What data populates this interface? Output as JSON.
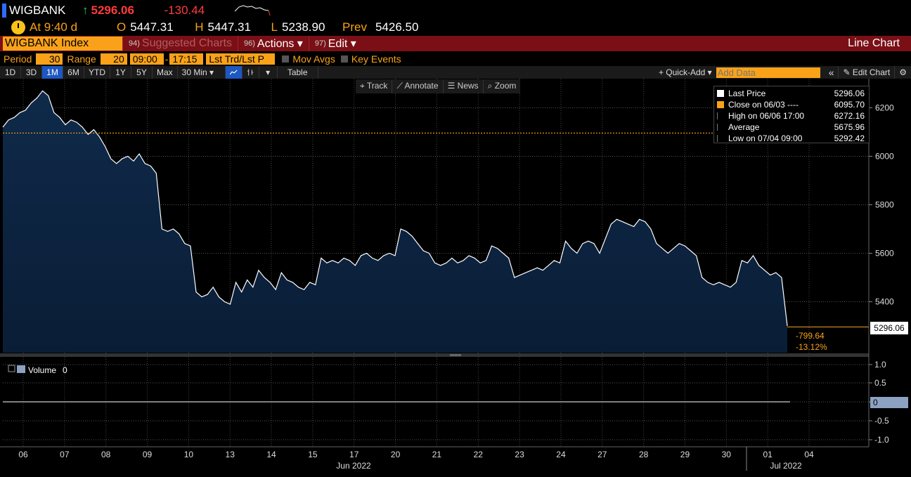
{
  "quote": {
    "ticker": "WIGBANK",
    "last": "5296.06",
    "change": "-130.44",
    "time_label": "At 9:40 d",
    "open_label": "O",
    "open": "5447.31",
    "high_label": "H",
    "high": "5447.31",
    "low_label": "L",
    "low": "5238.90",
    "prev_label": "Prev",
    "prev": "5426.50"
  },
  "header": {
    "security": "WIGBANK Index",
    "menus": [
      {
        "num": "94)",
        "label": "Suggested Charts"
      },
      {
        "num": "96)",
        "label": "Actions ▾"
      },
      {
        "num": "97)",
        "label": "Edit ▾"
      }
    ],
    "view": "Line Chart"
  },
  "settings": {
    "period_label": "Period",
    "period_value": "30",
    "range_label": "Range",
    "range_value": "20",
    "time_from": "09:00",
    "time_to": "17:15",
    "field": "Lst Trd/Lst P",
    "mov_avgs": "Mov Avgs",
    "key_events": "Key Events"
  },
  "toolbar": {
    "ranges": [
      "1D",
      "3D",
      "1M",
      "6M",
      "YTD",
      "1Y",
      "5Y",
      "Max"
    ],
    "selected": "1M",
    "interval": "30 Min ▾",
    "table": "Table",
    "quick_add": "+ Quick-Add ▾",
    "add_data_placeholder": "Add Data",
    "collapse": "«",
    "edit_chart": "✎ Edit Chart",
    "gear": "⚙"
  },
  "overlay_tools": [
    "⌖ Track",
    "⟋ Annotate",
    "☰ News",
    "⌕ Zoom"
  ],
  "legend": [
    {
      "swatch": "#ffffff",
      "label": "Last Price",
      "value": "5296.06"
    },
    {
      "swatch": "#f9a219",
      "label": "Close on 06/03 ----",
      "value": "6095.70"
    },
    {
      "swatch": "",
      "label": "High on 06/06 17:00",
      "value": "6272.16"
    },
    {
      "swatch": "",
      "label": "Average",
      "value": "5675.96"
    },
    {
      "swatch": "",
      "label": "Low on 07/04 09:00",
      "value": "5292.42"
    }
  ],
  "chart_data": {
    "type": "area",
    "y_ticks": [
      5400,
      5600,
      5800,
      6000,
      6200
    ],
    "ylim": [
      5190,
      6320
    ],
    "reference_line": 6095.7,
    "last_value": 5296.06,
    "last_label": "5296.06",
    "change_abs": "-799.64",
    "change_pct": "-13.12%",
    "x_ticks": [
      "06",
      "07",
      "08",
      "09",
      "10",
      "13",
      "14",
      "15",
      "17",
      "20",
      "21",
      "22",
      "23",
      "24",
      "27",
      "28",
      "29",
      "30",
      "01",
      "04"
    ],
    "month_labels": [
      "Jun 2022",
      "Jul 2022"
    ],
    "series": [
      {
        "values": [
          6120,
          6150,
          6160,
          6180,
          6190,
          6220,
          6240,
          6270,
          6250,
          6180,
          6160,
          6130,
          6150,
          6140,
          6120,
          6090,
          6110,
          6080,
          6040,
          5990,
          5970,
          5990,
          6000,
          5980,
          6010,
          5970,
          5960,
          5930,
          5700,
          5690,
          5700,
          5680,
          5640,
          5630,
          5440,
          5420,
          5430,
          5460,
          5420,
          5400,
          5390,
          5480,
          5440,
          5490,
          5460,
          5530,
          5500,
          5480,
          5450,
          5520,
          5490,
          5480,
          5460,
          5450,
          5480,
          5470,
          5580,
          5560,
          5570,
          5560,
          5580,
          5570,
          5550,
          5590,
          5600,
          5580,
          5570,
          5590,
          5600,
          5590,
          5700,
          5690,
          5670,
          5640,
          5610,
          5600,
          5560,
          5550,
          5560,
          5580,
          5560,
          5570,
          5590,
          5580,
          5560,
          5570,
          5630,
          5620,
          5600,
          5580,
          5500,
          5510,
          5520,
          5530,
          5540,
          5530,
          5550,
          5570,
          5560,
          5650,
          5620,
          5600,
          5640,
          5650,
          5640,
          5600,
          5660,
          5720,
          5740,
          5730,
          5720,
          5710,
          5740,
          5730,
          5700,
          5640,
          5620,
          5600,
          5620,
          5640,
          5630,
          5610,
          5590,
          5500,
          5480,
          5470,
          5480,
          5470,
          5460,
          5480,
          5570,
          5560,
          5590,
          5550,
          5530,
          5510,
          5520,
          5500,
          5300
        ]
      }
    ],
    "volume_ticks": [
      "1.0",
      "0.5",
      "0",
      "-0.5",
      "-1.0"
    ],
    "volume_label": "Volume",
    "volume_value": "0",
    "volume_last": "0"
  }
}
